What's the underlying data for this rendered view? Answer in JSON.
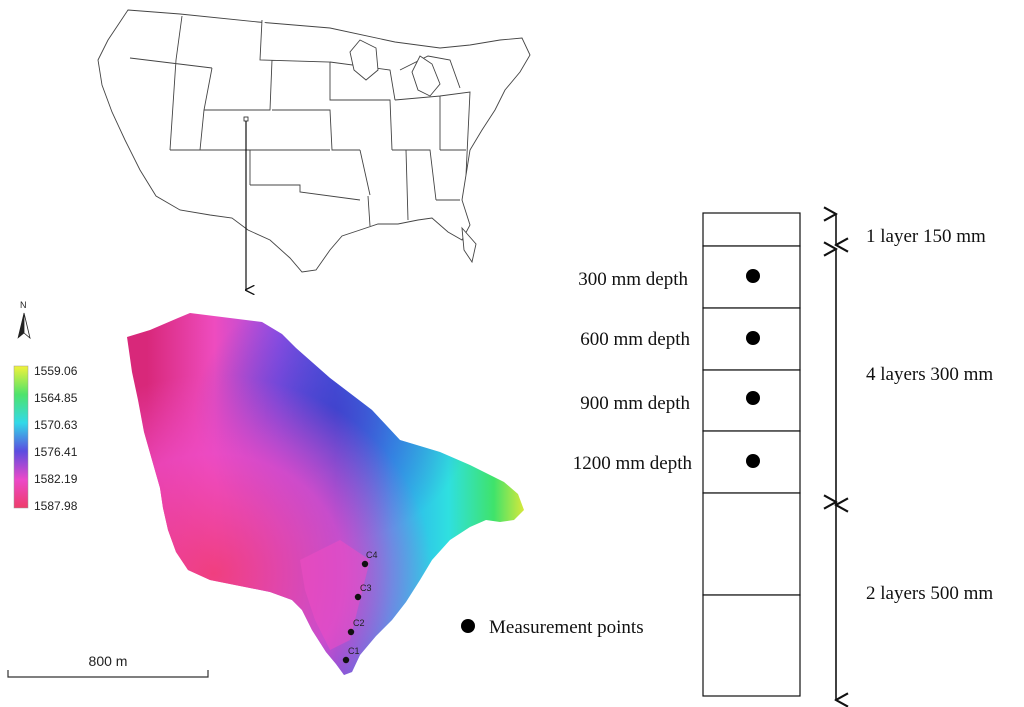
{
  "north_arrow": {
    "label": "N"
  },
  "legend": {
    "values": [
      "1559.06",
      "1564.85",
      "1570.63",
      "1576.41",
      "1582.19",
      "1587.98"
    ],
    "colors": [
      "#f2f23a",
      "#4ee36b",
      "#33d9e8",
      "#5b4de0",
      "#ec48c9",
      "#ee3d6a"
    ]
  },
  "scale_bar": {
    "label": "800 m"
  },
  "points": [
    "C4",
    "C3",
    "C2",
    "C1"
  ],
  "measurement_legend": {
    "label": "Measurement points"
  },
  "depths": [
    "300 mm depth",
    "600 mm depth",
    "900 mm depth",
    "1200 mm depth"
  ],
  "layers": [
    "1 layer 150 mm",
    "4 layers 300 mm",
    "2 layers 500 mm"
  ]
}
